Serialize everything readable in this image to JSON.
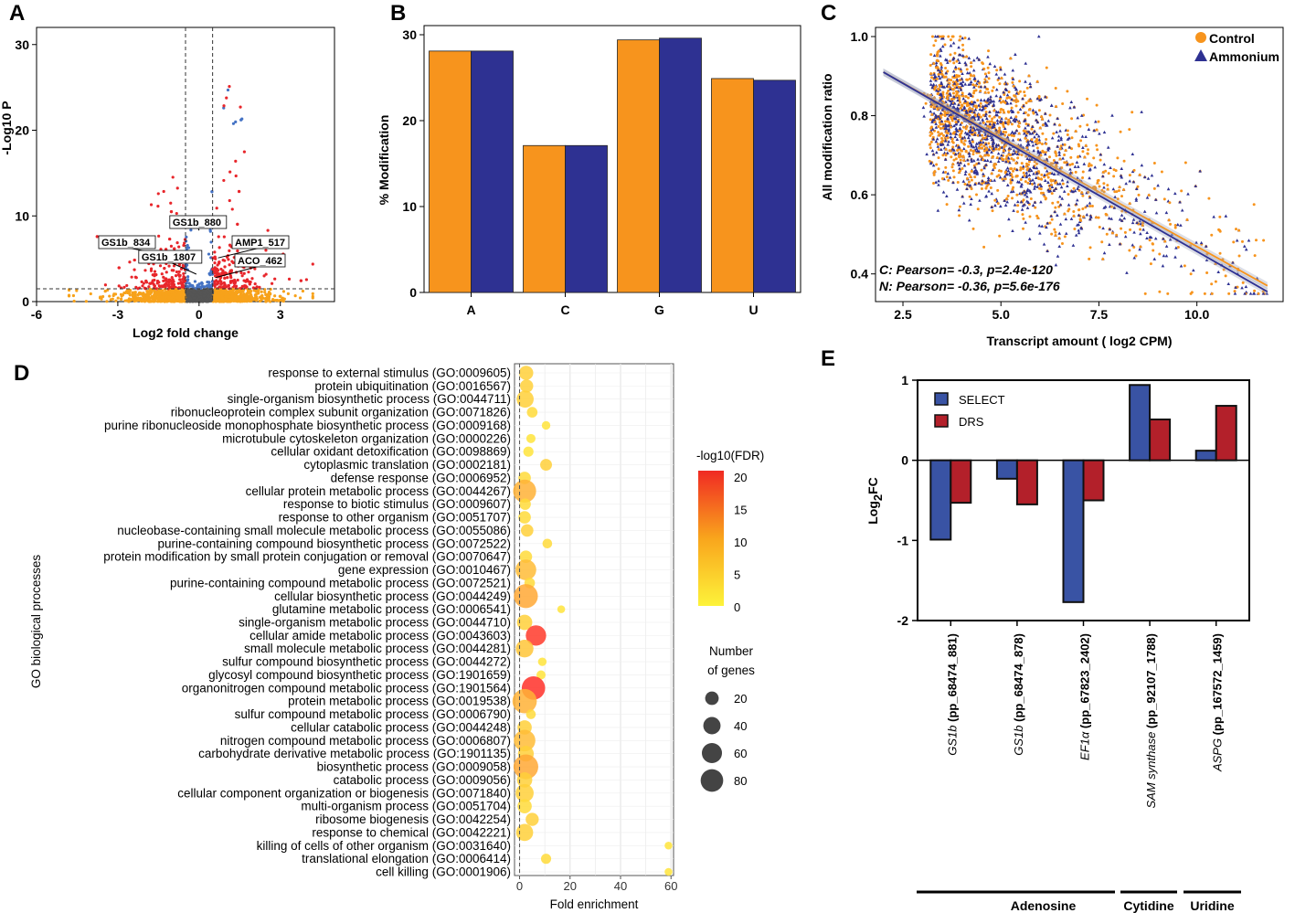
{
  "panels": {
    "a": "A",
    "b": "B",
    "c": "C",
    "d": "D",
    "e": "E"
  },
  "chart_data": [
    {
      "id": "A",
      "type": "scatter",
      "title": "",
      "xlabel": "Log2 fold change",
      "ylabel": "-Log10 P",
      "xlim": [
        -6,
        5
      ],
      "ylim": [
        0,
        32
      ],
      "xticks": [
        "-6",
        "-3",
        "0",
        "3"
      ],
      "yticks": [
        "0",
        "10",
        "20",
        "30"
      ],
      "thresholds": {
        "fc": 0.5,
        "p": 1.5
      },
      "series_colors": {
        "ns": "#555555",
        "p_only": "#4472c4",
        "fc_only": "#f7a21b",
        "both": "#e8262b"
      },
      "labeled_points": [
        {
          "name": "GS1b_880",
          "x": 0.0,
          "y": 8.3
        },
        {
          "name": "GS1b_834",
          "x": -1.1,
          "y": 5.4
        },
        {
          "name": "GS1b_1807",
          "x": -0.1,
          "y": 3.2
        },
        {
          "name": "AMP1_517",
          "x": 0.7,
          "y": 5.1
        },
        {
          "name": "ACO_462",
          "x": 0.6,
          "y": 2.8
        }
      ]
    },
    {
      "id": "B",
      "type": "bar",
      "categories": [
        "A",
        "C",
        "G",
        "U"
      ],
      "series": [
        {
          "name": "Control",
          "color": "#f7941d",
          "values": [
            28.1,
            17.1,
            29.4,
            24.9
          ]
        },
        {
          "name": "Ammonium",
          "color": "#2e3192",
          "values": [
            28.1,
            17.1,
            29.6,
            24.7
          ]
        }
      ],
      "ylabel": "% Modification",
      "ylim": [
        0,
        30
      ],
      "yticks": [
        "0",
        "10",
        "20",
        "30"
      ]
    },
    {
      "id": "C",
      "type": "scatter",
      "xlabel": "Transcript amount ( log2 CPM)",
      "ylabel": "All modification ratio",
      "xlim": [
        1.8,
        12.2
      ],
      "ylim": [
        0.33,
        1.0
      ],
      "xticks": [
        "2.5",
        "5.0",
        "7.5",
        "10.0"
      ],
      "yticks": [
        "0.4",
        "0.6",
        "0.8",
        "1.0"
      ],
      "legend": [
        {
          "name": "Control",
          "color": "#f7941d"
        },
        {
          "name": "Ammonium",
          "color": "#2e3192"
        }
      ],
      "fits": [
        {
          "name": "Control",
          "color": "#f7941d",
          "from": [
            2.0,
            0.91
          ],
          "to": [
            11.8,
            0.37
          ]
        },
        {
          "name": "Ammonium",
          "color": "#2e3192",
          "from": [
            2.0,
            0.91
          ],
          "to": [
            11.8,
            0.355
          ]
        }
      ],
      "annotations": [
        "C: Pearson= -0.3, p=2.4e-120",
        "N: Pearson= -0.36, p=5.6e-176"
      ]
    },
    {
      "id": "D",
      "type": "scatter",
      "xlabel": "Fold enrichment",
      "ylabel": "GO biological processes",
      "xlim": [
        -2,
        61
      ],
      "xticks": [
        "0",
        "20",
        "40",
        "60"
      ],
      "color_legend_title": "-log10(FDR)",
      "color_ticks": [
        "20",
        "15",
        "10",
        "5",
        "0"
      ],
      "size_legend_title_1": "Number",
      "size_legend_title_2": "of genes",
      "size_legend": [
        "20",
        "40",
        "60",
        "80"
      ],
      "terms": [
        {
          "label": "response to external stimulus (GO:0009605)",
          "fe": 2.6,
          "fdr": 3,
          "n": 18
        },
        {
          "label": "protein ubiquitination (GO:0016567)",
          "fe": 2.8,
          "fdr": 3,
          "n": 14
        },
        {
          "label": "single-organism biosynthetic process (GO:0044711)",
          "fe": 2.2,
          "fdr": 3,
          "n": 30
        },
        {
          "label": "ribonucleoprotein complex subunit organization (GO:0071826)",
          "fe": 5.0,
          "fdr": 2,
          "n": 7
        },
        {
          "label": "purine ribonucleoside monophosphate biosynthetic process (GO:0009168)",
          "fe": 10.5,
          "fdr": 1,
          "n": 3
        },
        {
          "label": "microtubule cytoskeleton organization (GO:0000226)",
          "fe": 4.5,
          "fdr": 1,
          "n": 4
        },
        {
          "label": "cellular oxidant detoxification (GO:0098869)",
          "fe": 3.5,
          "fdr": 1,
          "n": 6
        },
        {
          "label": "cytoplasmic translation (GO:0002181)",
          "fe": 10.5,
          "fdr": 3,
          "n": 10
        },
        {
          "label": "defense response (GO:0006952)",
          "fe": 2.0,
          "fdr": 2,
          "n": 12
        },
        {
          "label": "cellular protein metabolic process (GO:0044267)",
          "fe": 2.0,
          "fdr": 6,
          "n": 65
        },
        {
          "label": "response to biotic stimulus (GO:0009607)",
          "fe": 2.2,
          "fdr": 2,
          "n": 9
        },
        {
          "label": "response to other organism (GO:0051707)",
          "fe": 2.0,
          "fdr": 2,
          "n": 12
        },
        {
          "label": "nucleobase-containing small molecule metabolic process (GO:0055086)",
          "fe": 3.0,
          "fdr": 3,
          "n": 12
        },
        {
          "label": "purine-containing compound biosynthetic process (GO:0072522)",
          "fe": 11.0,
          "fdr": 2,
          "n": 5
        },
        {
          "label": "protein modification by small protein conjugation or removal (GO:0070647)",
          "fe": 2.5,
          "fdr": 2,
          "n": 12
        },
        {
          "label": "gene expression (GO:0010467)",
          "fe": 2.5,
          "fdr": 5,
          "n": 50
        },
        {
          "label": "purine-containing compound metabolic process (GO:0072521)",
          "fe": 4.0,
          "fdr": 2,
          "n": 7
        },
        {
          "label": "cellular biosynthetic process (GO:0044249)",
          "fe": 2.5,
          "fdr": 7,
          "n": 72
        },
        {
          "label": "glutamine metabolic process (GO:0006541)",
          "fe": 16.5,
          "fdr": 1,
          "n": 2
        },
        {
          "label": "single-organism metabolic process (GO:0044710)",
          "fe": 2.0,
          "fdr": 3,
          "n": 22
        },
        {
          "label": "cellular amide metabolic process (GO:0043603)",
          "fe": 6.5,
          "fdr": 18,
          "n": 48
        },
        {
          "label": "small molecule metabolic process (GO:0044281)",
          "fe": 2.0,
          "fdr": 4,
          "n": 33
        },
        {
          "label": "sulfur compound biosynthetic process (GO:0044272)",
          "fe": 9.0,
          "fdr": 1,
          "n": 3
        },
        {
          "label": "glycosyl compound biosynthetic process (GO:1901659)",
          "fe": 8.5,
          "fdr": 1,
          "n": 4
        },
        {
          "label": "organonitrogen compound metabolic process (GO:1901564)",
          "fe": 5.5,
          "fdr": 19,
          "n": 68
        },
        {
          "label": "protein metabolic process (GO:0019538)",
          "fe": 2.0,
          "fdr": 6,
          "n": 75
        },
        {
          "label": "sulfur compound metabolic process (GO:0006790)",
          "fe": 4.5,
          "fdr": 2,
          "n": 5
        },
        {
          "label": "cellular catabolic process (GO:0044248)",
          "fe": 2.0,
          "fdr": 3,
          "n": 18
        },
        {
          "label": "nitrogen compound metabolic process (GO:0006807)",
          "fe": 2.0,
          "fdr": 5,
          "n": 55
        },
        {
          "label": "carbohydrate derivative metabolic process (GO:1901135)",
          "fe": 2.5,
          "fdr": 3,
          "n": 24
        },
        {
          "label": "biosynthetic process (GO:0009058)",
          "fe": 2.5,
          "fdr": 7,
          "n": 78
        },
        {
          "label": "catabolic process (GO:0009056)",
          "fe": 2.0,
          "fdr": 3,
          "n": 22
        },
        {
          "label": "cellular component organization or biogenesis (GO:0071840)",
          "fe": 2.0,
          "fdr": 3,
          "n": 35
        },
        {
          "label": "multi-organism process (GO:0051704)",
          "fe": 2.0,
          "fdr": 2,
          "n": 18
        },
        {
          "label": "ribosome biogenesis (GO:0042254)",
          "fe": 5.0,
          "fdr": 3,
          "n": 14
        },
        {
          "label": "response to chemical (GO:0042221)",
          "fe": 2.0,
          "fdr": 3,
          "n": 30
        },
        {
          "label": "killing of cells of other organism (GO:0031640)",
          "fe": 59.0,
          "fdr": 1,
          "n": 2
        },
        {
          "label": "translational elongation (GO:0006414)",
          "fe": 10.5,
          "fdr": 2,
          "n": 6
        },
        {
          "label": "cell killing (GO:0001906)",
          "fe": 59.0,
          "fdr": 1,
          "n": 2
        }
      ]
    },
    {
      "id": "E",
      "type": "bar",
      "ylabel": "Log2FC",
      "ylim": [
        -2,
        1
      ],
      "yticks": [
        "1",
        "0",
        "-1",
        "-2"
      ],
      "categories": [
        {
          "gene": "GS1b",
          "id": " (pp_68474_881)"
        },
        {
          "gene": "GS1b",
          "id": " (pp_68474_878)"
        },
        {
          "gene": "EF1α",
          "id": " (pp_67823_2402)"
        },
        {
          "gene": "SAM synthase",
          "id": " (pp_92107_1788)"
        },
        {
          "gene": "ASPG",
          "id": " (pp_167572_1459)"
        }
      ],
      "series": [
        {
          "name": "SELECT",
          "color": "#3953a4",
          "values": [
            -0.99,
            -0.23,
            -1.77,
            0.94,
            0.12
          ]
        },
        {
          "name": "DRS",
          "color": "#b3202a",
          "values": [
            -0.53,
            -0.55,
            -0.5,
            0.51,
            0.68
          ]
        }
      ],
      "groups": [
        "Adenosine",
        "Cytidine",
        "Uridine"
      ]
    }
  ]
}
